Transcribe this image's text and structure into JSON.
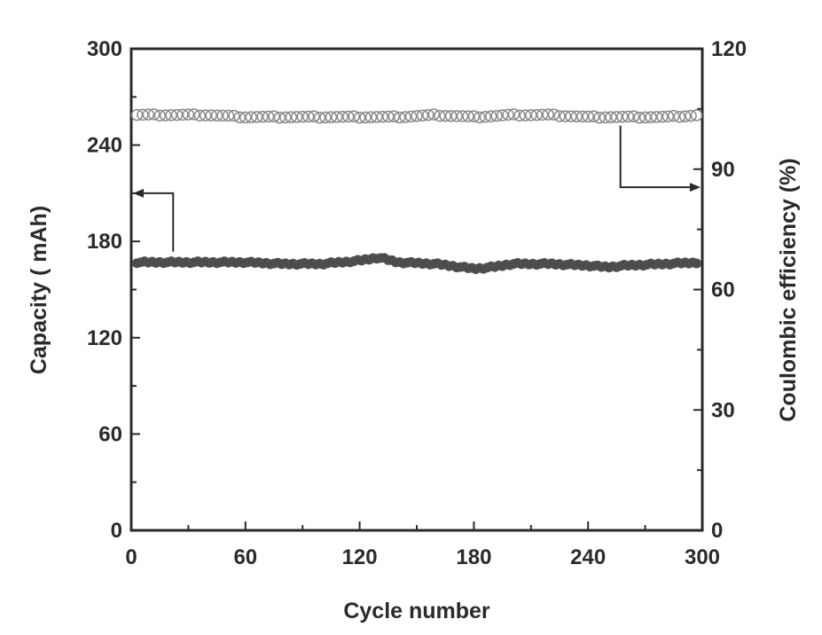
{
  "chart_data": {
    "type": "scatter",
    "title": "",
    "xlabel": "Cycle number",
    "ylabel": "Capacity ( mAh)",
    "ylabel_right": "Coulombic efficiency (%)",
    "xlim": [
      0,
      300
    ],
    "ylim": [
      0,
      300
    ],
    "ylim_right": [
      0,
      120
    ],
    "x_ticks": [
      "0",
      "60",
      "120",
      "180",
      "240",
      "300"
    ],
    "y_ticks": [
      "0",
      "60",
      "120",
      "180",
      "240",
      "300"
    ],
    "y_ticks_right": [
      "0",
      "30",
      "60",
      "90",
      "120"
    ],
    "grid": false,
    "legend": "none",
    "series": [
      {
        "axis": "left",
        "marker": "filled-circle",
        "color": "#555555",
        "x": [
          0,
          20,
          40,
          60,
          80,
          100,
          120,
          130,
          140,
          160,
          180,
          190,
          200,
          220,
          240,
          250,
          260,
          280,
          300
        ],
        "y": [
          167,
          167,
          167,
          167,
          166,
          166,
          168,
          170,
          167,
          166,
          163,
          164,
          166,
          166,
          165,
          164,
          165,
          166,
          167
        ]
      },
      {
        "axis": "right",
        "marker": "open-circle",
        "color": "#8a8a8a",
        "x": [
          0,
          20,
          40,
          60,
          80,
          100,
          120,
          140,
          160,
          180,
          200,
          220,
          240,
          260,
          280,
          300
        ],
        "y": [
          103.5,
          103.5,
          103.5,
          103,
          103,
          103,
          103,
          103,
          103.5,
          103,
          103.5,
          103.5,
          103,
          103,
          103,
          103.5
        ]
      }
    ],
    "annotations": [
      {
        "type": "arrow",
        "target_axis": "left",
        "description": "arrow from filled series pointing to left axis"
      },
      {
        "type": "arrow",
        "target_axis": "right",
        "description": "arrow from open series pointing to right axis"
      }
    ]
  }
}
